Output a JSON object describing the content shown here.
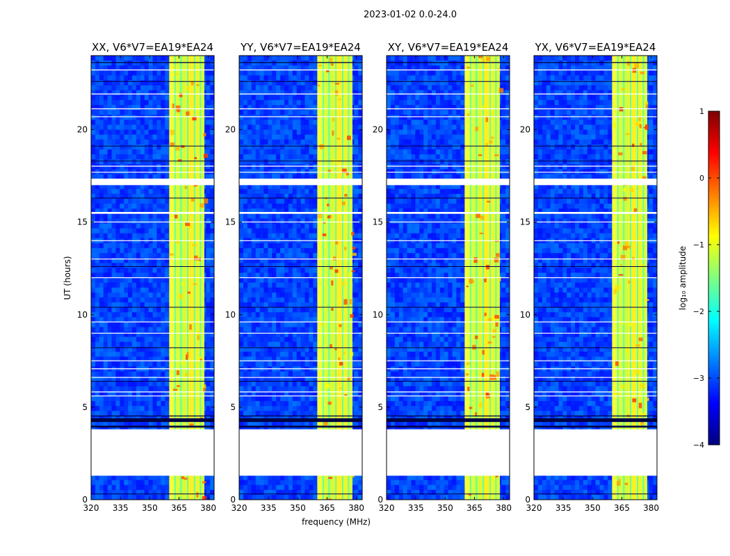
{
  "figure": {
    "suptitle": "2023-01-02 0.0-24.0",
    "xlabel": "frequency (MHz)",
    "ylabel": "UT (hours)",
    "colorbar": {
      "label": "log₁₀ amplitude",
      "range": [
        -4,
        1
      ],
      "ticks": [
        1,
        0,
        -1,
        -2,
        -3,
        -4
      ],
      "tick_labels": [
        "1",
        "0",
        "−1",
        "−2",
        "−3",
        "−4"
      ],
      "colormap": "jet",
      "colors": [
        "#00007f",
        "#0000ff",
        "#007fff",
        "#00ffff",
        "#7fff7f",
        "#ffff00",
        "#ff7f00",
        "#ff0000",
        "#7f0000"
      ]
    }
  },
  "chart_data": [
    {
      "type": "heatmap",
      "title": "XX, V6*V7=EA19*EA24",
      "xlabel": "frequency (MHz)",
      "ylabel": "UT (hours)",
      "xlim": [
        320,
        383
      ],
      "ylim": [
        0,
        24
      ],
      "xticks": [
        320,
        335,
        350,
        365,
        380
      ],
      "yticks": [
        0,
        5,
        10,
        15,
        20
      ],
      "rfi_band_mhz": [
        360,
        378
      ],
      "no_data_ut": [
        1.3,
        3.8
      ],
      "value_range_log10": [
        -4,
        1
      ]
    },
    {
      "type": "heatmap",
      "title": "YY, V6*V7=EA19*EA24",
      "xlabel": "frequency (MHz)",
      "ylabel": "UT (hours)",
      "xlim": [
        320,
        383
      ],
      "ylim": [
        0,
        24
      ],
      "xticks": [
        320,
        335,
        350,
        365,
        380
      ],
      "yticks": [
        0,
        5,
        10,
        15,
        20
      ],
      "rfi_band_mhz": [
        360,
        378
      ],
      "no_data_ut": [
        1.3,
        3.8
      ],
      "value_range_log10": [
        -4,
        1
      ]
    },
    {
      "type": "heatmap",
      "title": "XY, V6*V7=EA19*EA24",
      "xlabel": "frequency (MHz)",
      "ylabel": "UT (hours)",
      "xlim": [
        320,
        383
      ],
      "ylim": [
        0,
        24
      ],
      "xticks": [
        320,
        335,
        350,
        365,
        380
      ],
      "yticks": [
        0,
        5,
        10,
        15,
        20
      ],
      "rfi_band_mhz": [
        360,
        378
      ],
      "no_data_ut": [
        1.3,
        3.8
      ],
      "value_range_log10": [
        -4,
        1
      ]
    },
    {
      "type": "heatmap",
      "title": "YX, V6*V7=EA19*EA24",
      "xlabel": "frequency (MHz)",
      "ylabel": "UT (hours)",
      "xlim": [
        320,
        383
      ],
      "ylim": [
        0,
        24
      ],
      "xticks": [
        320,
        335,
        350,
        365,
        380
      ],
      "yticks": [
        0,
        5,
        10,
        15,
        20
      ],
      "rfi_band_mhz": [
        360,
        378
      ],
      "no_data_ut": [
        1.3,
        3.8
      ],
      "value_range_log10": [
        -4,
        1
      ]
    }
  ]
}
